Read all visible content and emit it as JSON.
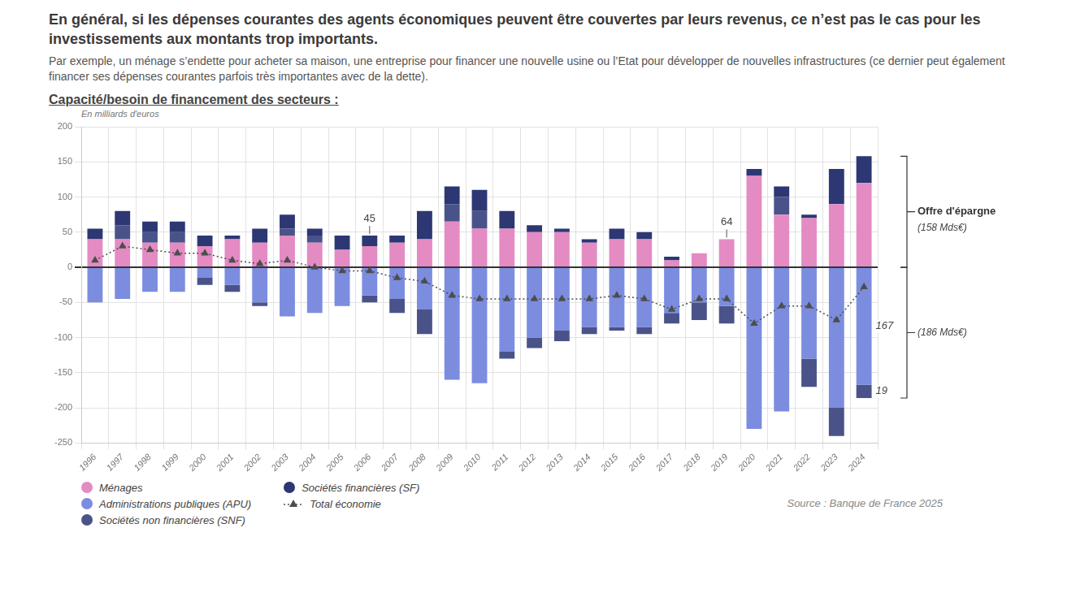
{
  "header": {
    "headline": "En général, si les dépenses courantes des agents économiques peuvent être couvertes par leurs revenus, ce n’est pas le cas pour les investissements aux montants trop importants.",
    "text": "Par exemple, un ménage s’endette pour acheter sa maison, une entreprise pour financer une nouvelle usine ou l’Etat pour développer de nouvelles infrastructures (ce dernier peut également financer ses dépenses courantes parfois très importantes avec de la dette)."
  },
  "chart_data": {
    "type": "bar",
    "title": "Capacité/besoin de financement des secteurs :",
    "subtitle": "En milliards d'euros",
    "source": "Source : Banque de France 2025",
    "stacked": true,
    "grid": true,
    "legend": "bottom-left",
    "categories": [
      "1996",
      "1997",
      "1998",
      "1999",
      "2000",
      "2001",
      "2002",
      "2003",
      "2004",
      "2005",
      "2006",
      "2007",
      "2008",
      "2009",
      "2010",
      "2011",
      "2012",
      "2013",
      "2014",
      "2015",
      "2016",
      "2017",
      "2018",
      "2019",
      "2020",
      "2021",
      "2022",
      "2023",
      "2024"
    ],
    "series": [
      {
        "name": "Ménages",
        "color": "#e48bc3",
        "values": [
          40,
          40,
          35,
          35,
          30,
          40,
          35,
          45,
          35,
          25,
          30,
          35,
          40,
          65,
          55,
          55,
          50,
          50,
          35,
          40,
          40,
          10,
          20,
          40,
          130,
          75,
          70,
          90,
          120
        ]
      },
      {
        "name": "Administrations publiques (APU)",
        "color": "#7c8de0",
        "values": [
          -50,
          -45,
          -35,
          -35,
          -15,
          -25,
          -50,
          -70,
          -65,
          -55,
          -40,
          -45,
          -60,
          -160,
          -165,
          -120,
          -100,
          -90,
          -85,
          -85,
          -85,
          -65,
          -50,
          -55,
          -230,
          -205,
          -130,
          -200,
          -167
        ]
      },
      {
        "name": "Sociétés non financières (SNF)",
        "color": "#4a5389",
        "values": [
          0,
          20,
          15,
          15,
          -10,
          -10,
          -5,
          10,
          10,
          0,
          -10,
          -20,
          -35,
          25,
          25,
          -10,
          -15,
          -15,
          -10,
          -5,
          -10,
          -15,
          -25,
          -25,
          0,
          25,
          -40,
          -40,
          -19
        ]
      },
      {
        "name": "Sociétés financières (SF)",
        "color": "#2c3774",
        "values": [
          15,
          20,
          15,
          15,
          15,
          5,
          20,
          20,
          10,
          20,
          15,
          10,
          40,
          25,
          30,
          25,
          10,
          5,
          5,
          15,
          10,
          5,
          0,
          0,
          10,
          15,
          5,
          50,
          38
        ]
      },
      {
        "name": "Total économie",
        "type": "line",
        "color": "#4d4d4d",
        "marker": "triangle",
        "line_style": "dotted",
        "values": [
          10,
          30,
          25,
          20,
          20,
          10,
          5,
          10,
          0,
          -5,
          -5,
          -15,
          -20,
          -40,
          -45,
          -45,
          -45,
          -45,
          -45,
          -40,
          -45,
          -60,
          -45,
          -45,
          -80,
          -55,
          -55,
          -75,
          -28
        ]
      }
    ],
    "ylim": [
      -250,
      200
    ],
    "yticks": [
      -250,
      -200,
      -150,
      -100,
      -50,
      0,
      50,
      100,
      150,
      200
    ],
    "annotations": [
      {
        "category": "2006",
        "text": "45"
      },
      {
        "category": "2019",
        "text": "64"
      },
      {
        "category": "2024",
        "series": "Administrations publiques (APU)",
        "text": "167"
      },
      {
        "category": "2024",
        "series": "Sociétés non financières (SNF)",
        "text": "19"
      }
    ],
    "brackets": {
      "positive": {
        "category": "2024",
        "label": "Offre d'épargne",
        "sublabel": "(158 Mds€)"
      },
      "negative": {
        "category": "2024",
        "sublabel": "(186 Mds€)"
      }
    }
  }
}
